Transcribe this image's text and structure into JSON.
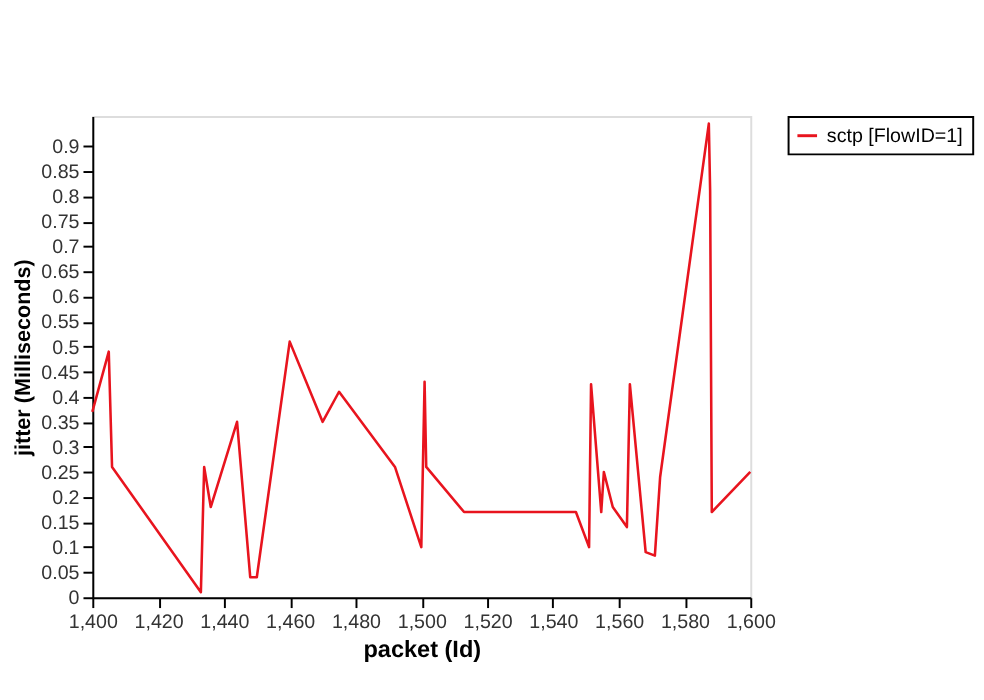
{
  "chart_data": {
    "type": "line",
    "xlabel": "packet (Id)",
    "ylabel": "jitter (Milliseconds)",
    "xlim": [
      1400,
      1600
    ],
    "xticks": [
      {
        "value": 1400,
        "label": "1,400"
      },
      {
        "value": 1420,
        "label": "1,420"
      },
      {
        "value": 1440,
        "label": "1,440"
      },
      {
        "value": 1460,
        "label": "1,460"
      },
      {
        "value": 1480,
        "label": "1,480"
      },
      {
        "value": 1500,
        "label": "1,500"
      },
      {
        "value": 1520,
        "label": "1,520"
      },
      {
        "value": 1540,
        "label": "1,540"
      },
      {
        "value": 1560,
        "label": "1,560"
      },
      {
        "value": 1580,
        "label": "1,580"
      },
      {
        "value": 1600,
        "label": "1,600"
      }
    ],
    "ylim": [
      0,
      0.96
    ],
    "yticks": [
      0,
      0.05,
      0.1,
      0.15,
      0.2,
      0.25,
      0.3,
      0.35,
      0.4,
      0.45,
      0.5,
      0.55,
      0.6,
      0.65,
      0.7,
      0.75,
      0.8,
      0.85,
      0.9
    ],
    "grid": false,
    "legend": "top right",
    "marker": "none",
    "line_style": "solid",
    "series": [
      {
        "name": "sctp [FlowID=1]",
        "color": "#e8141e",
        "x": [
          1400,
          1405,
          1406,
          1433,
          1434,
          1436,
          1444,
          1448,
          1450,
          1460,
          1470,
          1475,
          1492,
          1500,
          1501,
          1501.5,
          1513,
          1547,
          1551,
          1551.6,
          1554.7,
          1555.5,
          1558.2,
          1562.5,
          1563.4,
          1568.2,
          1571,
          1572.6,
          1587.4,
          1587.8,
          1588.3,
          1600
        ],
        "values": [
          0.37,
          0.49,
          0.26,
          0.01,
          0.26,
          0.18,
          0.35,
          0.04,
          0.04,
          0.51,
          0.35,
          0.41,
          0.26,
          0.1,
          0.43,
          0.26,
          0.17,
          0.17,
          0.1,
          0.425,
          0.17,
          0.25,
          0.18,
          0.14,
          0.425,
          0.09,
          0.083,
          0.24,
          0.945,
          0.81,
          0.17,
          0.25
        ]
      }
    ]
  }
}
